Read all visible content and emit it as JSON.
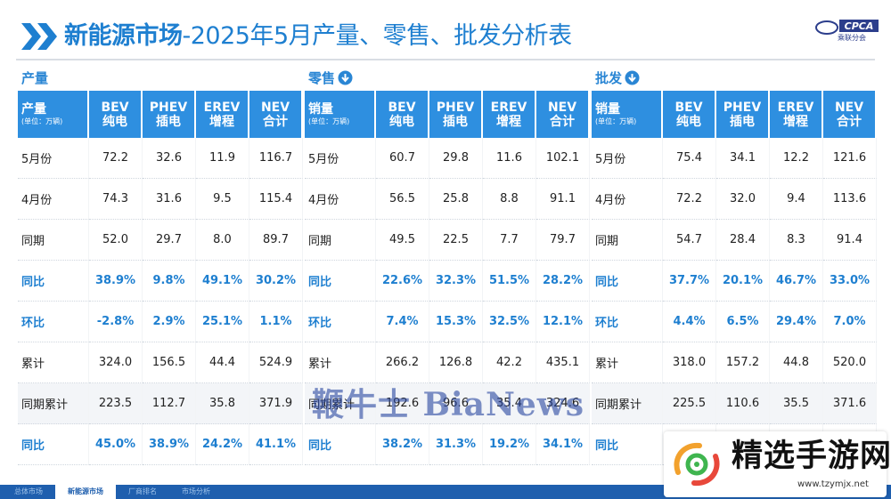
{
  "header": {
    "title_bold": "新能源市场",
    "title_rest": "-2025年5月产量、零售、批发分析表",
    "logo_text": "CPCA",
    "logo_sub": "乘联分会"
  },
  "columns": {
    "bev": [
      "BEV",
      "纯电"
    ],
    "phev": [
      "PHEV",
      "插电"
    ],
    "erev": [
      "EREV",
      "增程"
    ],
    "nev": [
      "NEV",
      "合计"
    ],
    "unit": "(单位：万辆)"
  },
  "tables": [
    {
      "section": "产量",
      "has_arrow": false,
      "first_header": "产量",
      "rows": [
        {
          "label": "5月份",
          "values": [
            "72.2",
            "32.6",
            "11.9",
            "116.7"
          ],
          "highlight": false
        },
        {
          "label": "4月份",
          "values": [
            "74.3",
            "31.6",
            "9.5",
            "115.4"
          ],
          "highlight": false
        },
        {
          "label": "同期",
          "values": [
            "52.0",
            "29.7",
            "8.0",
            "89.7"
          ],
          "highlight": false
        },
        {
          "label": "同比",
          "values": [
            "38.9%",
            "9.8%",
            "49.1%",
            "30.2%"
          ],
          "highlight": true
        },
        {
          "label": "环比",
          "values": [
            "-2.8%",
            "2.9%",
            "25.1%",
            "1.1%"
          ],
          "highlight": true
        },
        {
          "label": "累计",
          "values": [
            "324.0",
            "156.5",
            "44.4",
            "524.9"
          ],
          "highlight": false
        },
        {
          "label": "同期累计",
          "values": [
            "223.5",
            "112.7",
            "35.8",
            "371.9"
          ],
          "highlight": false
        },
        {
          "label": "同比",
          "values": [
            "45.0%",
            "38.9%",
            "24.2%",
            "41.1%"
          ],
          "highlight": true
        }
      ]
    },
    {
      "section": "零售",
      "has_arrow": true,
      "first_header": "销量",
      "rows": [
        {
          "label": "5月份",
          "values": [
            "60.7",
            "29.8",
            "11.6",
            "102.1"
          ],
          "highlight": false
        },
        {
          "label": "4月份",
          "values": [
            "56.5",
            "25.8",
            "8.8",
            "91.1"
          ],
          "highlight": false
        },
        {
          "label": "同期",
          "values": [
            "49.5",
            "22.5",
            "7.7",
            "79.7"
          ],
          "highlight": false
        },
        {
          "label": "同比",
          "values": [
            "22.6%",
            "32.3%",
            "51.5%",
            "28.2%"
          ],
          "highlight": true
        },
        {
          "label": "环比",
          "values": [
            "7.4%",
            "15.3%",
            "32.5%",
            "12.1%"
          ],
          "highlight": true
        },
        {
          "label": "累计",
          "values": [
            "266.2",
            "126.8",
            "42.2",
            "435.1"
          ],
          "highlight": false
        },
        {
          "label": "同期累计",
          "values": [
            "192.6",
            "96.6",
            "35.4",
            "324.6"
          ],
          "highlight": false
        },
        {
          "label": "同比",
          "values": [
            "38.2%",
            "31.3%",
            "19.2%",
            "34.1%"
          ],
          "highlight": true
        }
      ]
    },
    {
      "section": "批发",
      "has_arrow": true,
      "first_header": "销量",
      "rows": [
        {
          "label": "5月份",
          "values": [
            "75.4",
            "34.1",
            "12.2",
            "121.6"
          ],
          "highlight": false
        },
        {
          "label": "4月份",
          "values": [
            "72.2",
            "32.0",
            "9.4",
            "113.6"
          ],
          "highlight": false
        },
        {
          "label": "同期",
          "values": [
            "54.7",
            "28.4",
            "8.3",
            "91.4"
          ],
          "highlight": false
        },
        {
          "label": "同比",
          "values": [
            "37.7%",
            "20.1%",
            "46.7%",
            "33.0%"
          ],
          "highlight": true
        },
        {
          "label": "环比",
          "values": [
            "4.4%",
            "6.5%",
            "29.4%",
            "7.0%"
          ],
          "highlight": true
        },
        {
          "label": "累计",
          "values": [
            "318.0",
            "157.2",
            "44.8",
            "520.0"
          ],
          "highlight": false
        },
        {
          "label": "同期累计",
          "values": [
            "225.5",
            "110.6",
            "35.5",
            "371.6"
          ],
          "highlight": false
        },
        {
          "label": "同比",
          "values": [
            "",
            "",
            "",
            ""
          ],
          "highlight": true
        }
      ]
    }
  ],
  "watermark": "鞭牛士 BiaNews",
  "footer_tabs": [
    {
      "label": "总体市场",
      "active": false
    },
    {
      "label": "新能源市场",
      "active": true
    },
    {
      "label": "厂商排名",
      "active": false
    },
    {
      "label": "市场分析",
      "active": false
    }
  ],
  "promo": {
    "name": "精选手游网",
    "url": "www.tzymjx.net"
  },
  "colors": {
    "accent": "#2e8fe0",
    "title": "#1e7fd0",
    "footer": "#1f5fae"
  }
}
